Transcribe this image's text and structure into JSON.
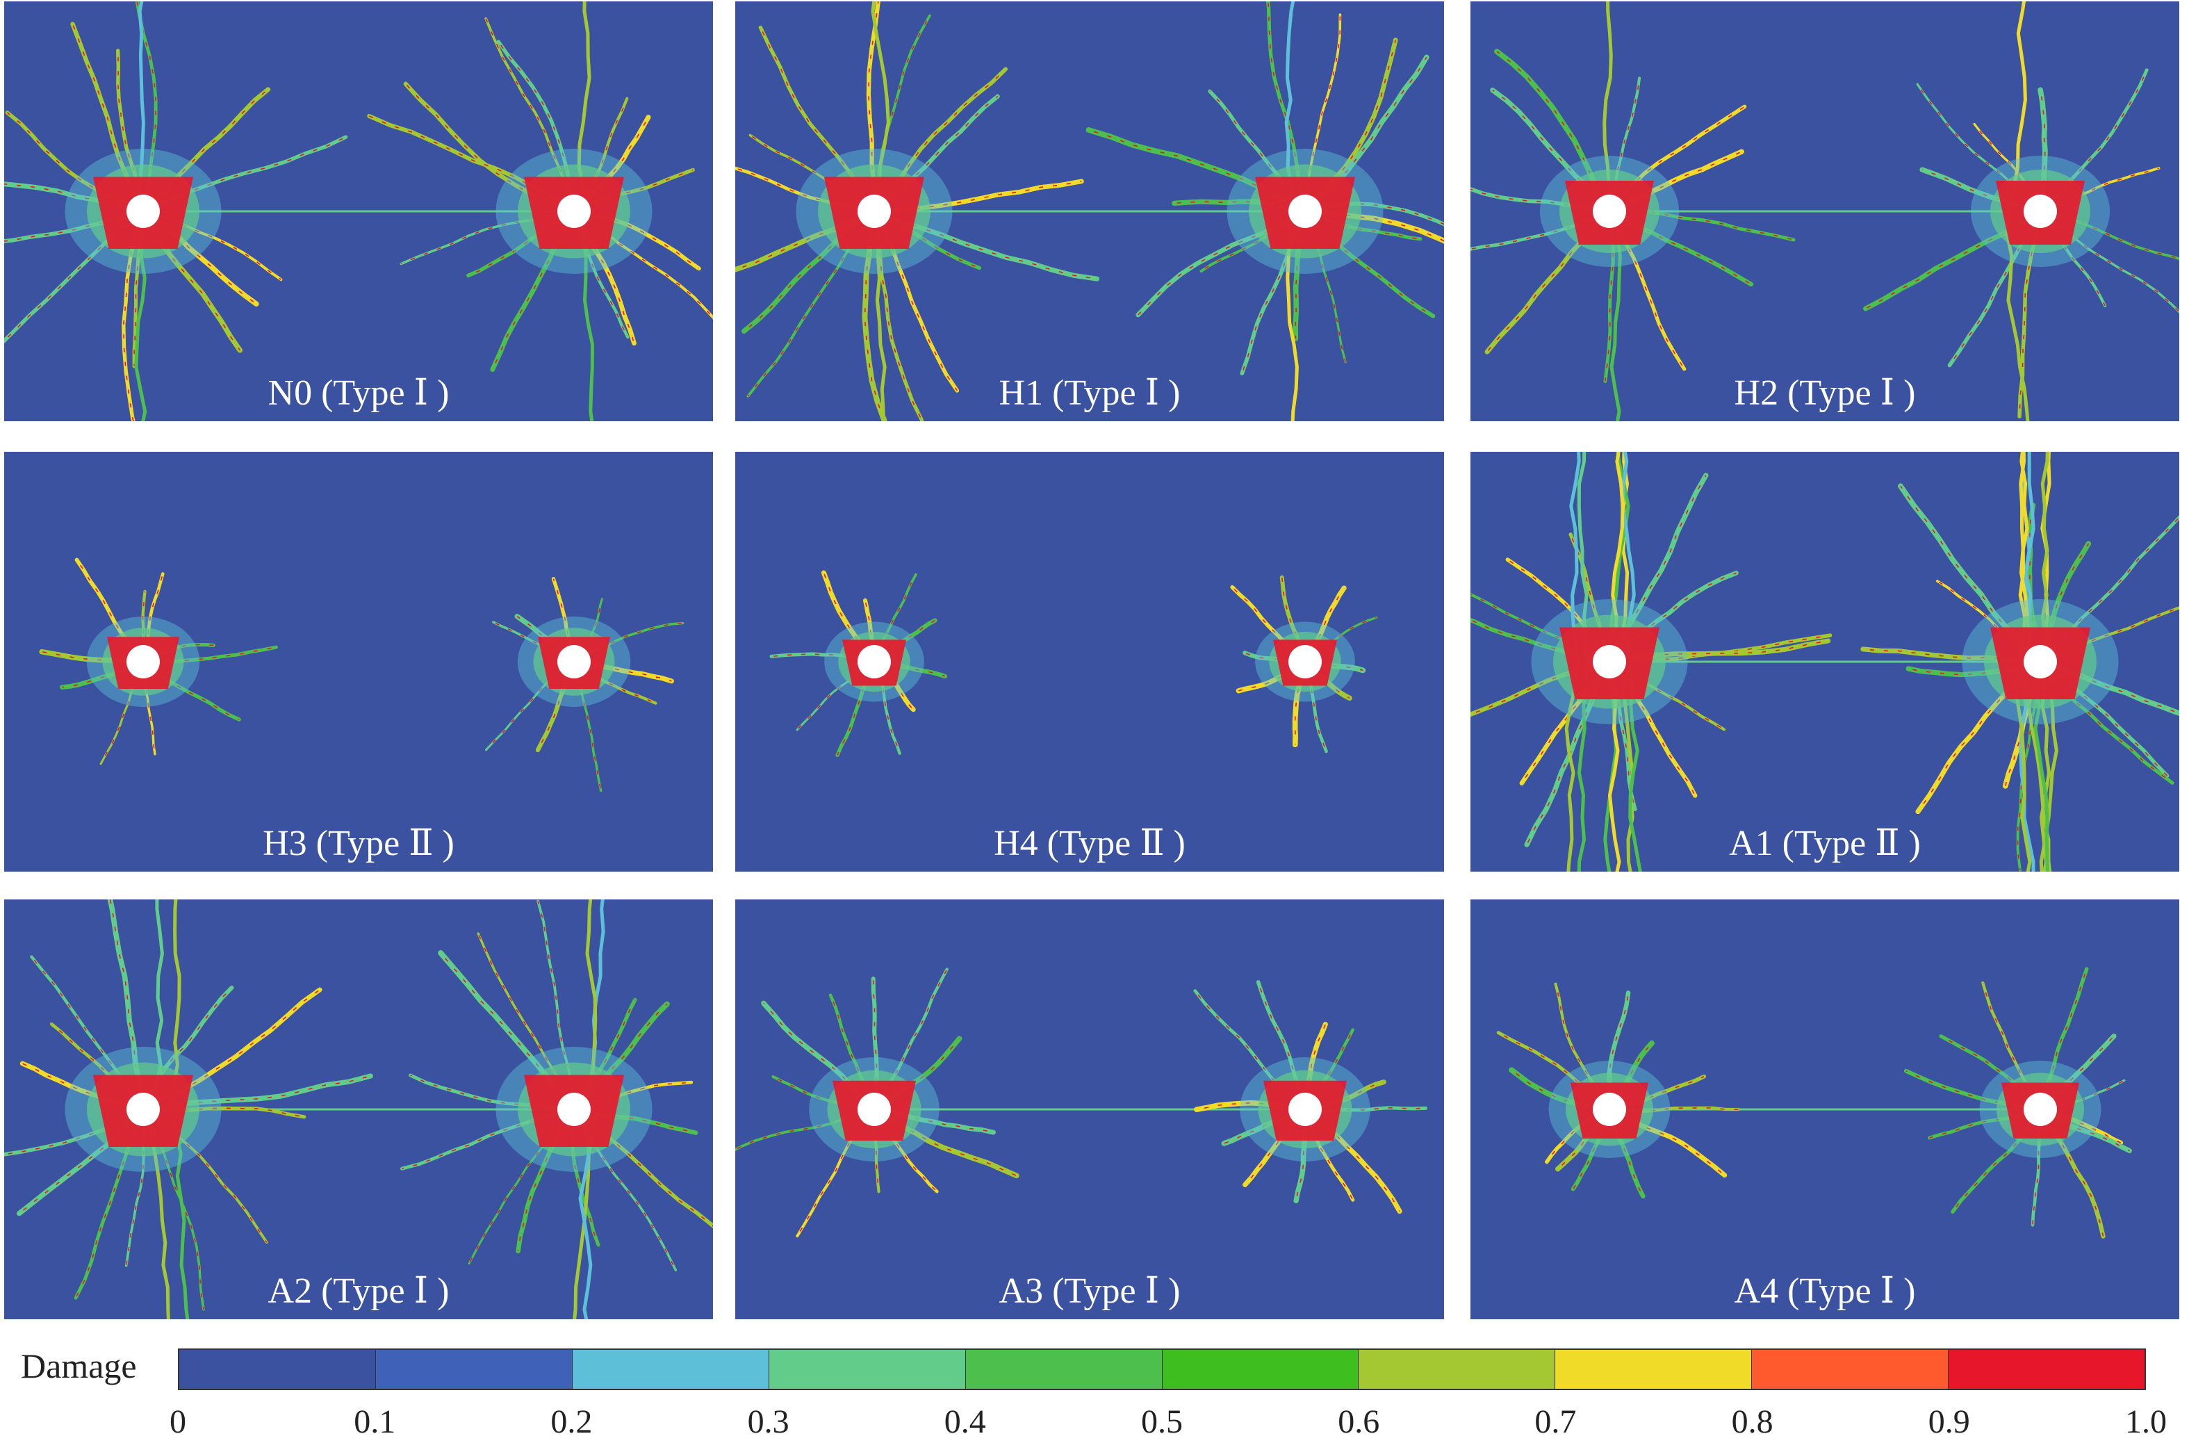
{
  "panels": [
    {
      "label": "N0 (Type Ⅰ )",
      "rays": 14,
      "len": 0.95,
      "spread": 1.0,
      "vertical": 0.2
    },
    {
      "label": "H1 (Type Ⅰ )",
      "rays": 16,
      "len": 0.95,
      "spread": 1.0,
      "vertical": 0.2
    },
    {
      "label": "H2 (Type Ⅰ )",
      "rays": 12,
      "len": 0.85,
      "spread": 0.8,
      "vertical": 0.1
    },
    {
      "label": "H3 (Type Ⅱ )",
      "rays": 10,
      "len": 0.55,
      "spread": 0.5,
      "vertical": 0.0
    },
    {
      "label": "H4 (Type Ⅱ )",
      "rays": 10,
      "len": 0.45,
      "spread": 0.35,
      "vertical": 0.0
    },
    {
      "label": "A1 (Type Ⅱ )",
      "rays": 14,
      "len": 0.95,
      "spread": 1.0,
      "vertical": 1.0
    },
    {
      "label": "A2 (Type Ⅰ )",
      "rays": 14,
      "len": 0.95,
      "spread": 1.0,
      "vertical": 0.3
    },
    {
      "label": "A3 (Type Ⅰ )",
      "rays": 12,
      "len": 0.65,
      "spread": 0.7,
      "vertical": 0.0
    },
    {
      "label": "A4 (Type Ⅰ )",
      "rays": 12,
      "len": 0.6,
      "spread": 0.6,
      "vertical": 0.0
    }
  ],
  "legend": {
    "title": "Damage",
    "colors": [
      "#3a52a0",
      "#3f62b8",
      "#5ec0d8",
      "#62cc8a",
      "#4cbf4c",
      "#3fbf1f",
      "#a4c832",
      "#f0dc28",
      "#ff5a2e",
      "#e8162a"
    ],
    "ticks": [
      "0",
      "0.1",
      "0.2",
      "0.3",
      "0.4",
      "0.5",
      "0.6",
      "0.7",
      "0.8",
      "0.9",
      "1.0"
    ]
  },
  "background_color": "#3a52a0"
}
